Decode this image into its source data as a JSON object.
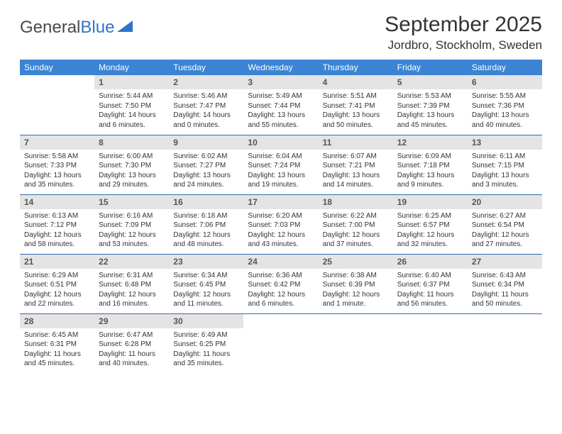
{
  "logo": {
    "text1": "General",
    "text2": "Blue"
  },
  "title": "September 2025",
  "location": "Jordbro, Stockholm, Sweden",
  "colors": {
    "header_bg": "#3b84d4",
    "daynum_bg": "#e4e4e4",
    "row_border": "#2e6db3",
    "logo_blue": "#2e75c9"
  },
  "weekdays": [
    "Sunday",
    "Monday",
    "Tuesday",
    "Wednesday",
    "Thursday",
    "Friday",
    "Saturday"
  ],
  "weeks": [
    [
      {
        "n": "",
        "sr": "",
        "ss": "",
        "d1": "",
        "d2": ""
      },
      {
        "n": "1",
        "sr": "Sunrise: 5:44 AM",
        "ss": "Sunset: 7:50 PM",
        "d1": "Daylight: 14 hours",
        "d2": "and 6 minutes."
      },
      {
        "n": "2",
        "sr": "Sunrise: 5:46 AM",
        "ss": "Sunset: 7:47 PM",
        "d1": "Daylight: 14 hours",
        "d2": "and 0 minutes."
      },
      {
        "n": "3",
        "sr": "Sunrise: 5:49 AM",
        "ss": "Sunset: 7:44 PM",
        "d1": "Daylight: 13 hours",
        "d2": "and 55 minutes."
      },
      {
        "n": "4",
        "sr": "Sunrise: 5:51 AM",
        "ss": "Sunset: 7:41 PM",
        "d1": "Daylight: 13 hours",
        "d2": "and 50 minutes."
      },
      {
        "n": "5",
        "sr": "Sunrise: 5:53 AM",
        "ss": "Sunset: 7:39 PM",
        "d1": "Daylight: 13 hours",
        "d2": "and 45 minutes."
      },
      {
        "n": "6",
        "sr": "Sunrise: 5:55 AM",
        "ss": "Sunset: 7:36 PM",
        "d1": "Daylight: 13 hours",
        "d2": "and 40 minutes."
      }
    ],
    [
      {
        "n": "7",
        "sr": "Sunrise: 5:58 AM",
        "ss": "Sunset: 7:33 PM",
        "d1": "Daylight: 13 hours",
        "d2": "and 35 minutes."
      },
      {
        "n": "8",
        "sr": "Sunrise: 6:00 AM",
        "ss": "Sunset: 7:30 PM",
        "d1": "Daylight: 13 hours",
        "d2": "and 29 minutes."
      },
      {
        "n": "9",
        "sr": "Sunrise: 6:02 AM",
        "ss": "Sunset: 7:27 PM",
        "d1": "Daylight: 13 hours",
        "d2": "and 24 minutes."
      },
      {
        "n": "10",
        "sr": "Sunrise: 6:04 AM",
        "ss": "Sunset: 7:24 PM",
        "d1": "Daylight: 13 hours",
        "d2": "and 19 minutes."
      },
      {
        "n": "11",
        "sr": "Sunrise: 6:07 AM",
        "ss": "Sunset: 7:21 PM",
        "d1": "Daylight: 13 hours",
        "d2": "and 14 minutes."
      },
      {
        "n": "12",
        "sr": "Sunrise: 6:09 AM",
        "ss": "Sunset: 7:18 PM",
        "d1": "Daylight: 13 hours",
        "d2": "and 9 minutes."
      },
      {
        "n": "13",
        "sr": "Sunrise: 6:11 AM",
        "ss": "Sunset: 7:15 PM",
        "d1": "Daylight: 13 hours",
        "d2": "and 3 minutes."
      }
    ],
    [
      {
        "n": "14",
        "sr": "Sunrise: 6:13 AM",
        "ss": "Sunset: 7:12 PM",
        "d1": "Daylight: 12 hours",
        "d2": "and 58 minutes."
      },
      {
        "n": "15",
        "sr": "Sunrise: 6:16 AM",
        "ss": "Sunset: 7:09 PM",
        "d1": "Daylight: 12 hours",
        "d2": "and 53 minutes."
      },
      {
        "n": "16",
        "sr": "Sunrise: 6:18 AM",
        "ss": "Sunset: 7:06 PM",
        "d1": "Daylight: 12 hours",
        "d2": "and 48 minutes."
      },
      {
        "n": "17",
        "sr": "Sunrise: 6:20 AM",
        "ss": "Sunset: 7:03 PM",
        "d1": "Daylight: 12 hours",
        "d2": "and 43 minutes."
      },
      {
        "n": "18",
        "sr": "Sunrise: 6:22 AM",
        "ss": "Sunset: 7:00 PM",
        "d1": "Daylight: 12 hours",
        "d2": "and 37 minutes."
      },
      {
        "n": "19",
        "sr": "Sunrise: 6:25 AM",
        "ss": "Sunset: 6:57 PM",
        "d1": "Daylight: 12 hours",
        "d2": "and 32 minutes."
      },
      {
        "n": "20",
        "sr": "Sunrise: 6:27 AM",
        "ss": "Sunset: 6:54 PM",
        "d1": "Daylight: 12 hours",
        "d2": "and 27 minutes."
      }
    ],
    [
      {
        "n": "21",
        "sr": "Sunrise: 6:29 AM",
        "ss": "Sunset: 6:51 PM",
        "d1": "Daylight: 12 hours",
        "d2": "and 22 minutes."
      },
      {
        "n": "22",
        "sr": "Sunrise: 6:31 AM",
        "ss": "Sunset: 6:48 PM",
        "d1": "Daylight: 12 hours",
        "d2": "and 16 minutes."
      },
      {
        "n": "23",
        "sr": "Sunrise: 6:34 AM",
        "ss": "Sunset: 6:45 PM",
        "d1": "Daylight: 12 hours",
        "d2": "and 11 minutes."
      },
      {
        "n": "24",
        "sr": "Sunrise: 6:36 AM",
        "ss": "Sunset: 6:42 PM",
        "d1": "Daylight: 12 hours",
        "d2": "and 6 minutes."
      },
      {
        "n": "25",
        "sr": "Sunrise: 6:38 AM",
        "ss": "Sunset: 6:39 PM",
        "d1": "Daylight: 12 hours",
        "d2": "and 1 minute."
      },
      {
        "n": "26",
        "sr": "Sunrise: 6:40 AM",
        "ss": "Sunset: 6:37 PM",
        "d1": "Daylight: 11 hours",
        "d2": "and 56 minutes."
      },
      {
        "n": "27",
        "sr": "Sunrise: 6:43 AM",
        "ss": "Sunset: 6:34 PM",
        "d1": "Daylight: 11 hours",
        "d2": "and 50 minutes."
      }
    ],
    [
      {
        "n": "28",
        "sr": "Sunrise: 6:45 AM",
        "ss": "Sunset: 6:31 PM",
        "d1": "Daylight: 11 hours",
        "d2": "and 45 minutes."
      },
      {
        "n": "29",
        "sr": "Sunrise: 6:47 AM",
        "ss": "Sunset: 6:28 PM",
        "d1": "Daylight: 11 hours",
        "d2": "and 40 minutes."
      },
      {
        "n": "30",
        "sr": "Sunrise: 6:49 AM",
        "ss": "Sunset: 6:25 PM",
        "d1": "Daylight: 11 hours",
        "d2": "and 35 minutes."
      },
      {
        "n": "",
        "sr": "",
        "ss": "",
        "d1": "",
        "d2": ""
      },
      {
        "n": "",
        "sr": "",
        "ss": "",
        "d1": "",
        "d2": ""
      },
      {
        "n": "",
        "sr": "",
        "ss": "",
        "d1": "",
        "d2": ""
      },
      {
        "n": "",
        "sr": "",
        "ss": "",
        "d1": "",
        "d2": ""
      }
    ]
  ]
}
